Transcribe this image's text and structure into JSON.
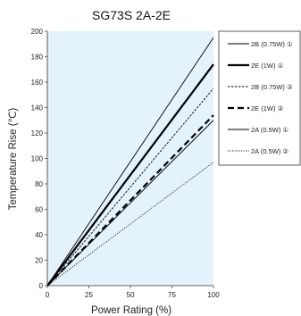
{
  "chart_data": {
    "type": "line",
    "title": "SG73S 2A-2E",
    "xlabel": "Power Rating (%)",
    "ylabel": "Temperature Rise (℃)",
    "xlim": [
      0,
      100
    ],
    "ylim": [
      0,
      200
    ],
    "xticks": [
      0,
      25,
      50,
      75,
      100
    ],
    "yticks": [
      0,
      20,
      40,
      60,
      80,
      100,
      120,
      140,
      160,
      180,
      200
    ],
    "grid": false,
    "plot_background": "#e3f2fb",
    "legend_position": "right",
    "series": [
      {
        "name": "2B (0.75W) ①",
        "x": [
          0,
          100
        ],
        "y": [
          0,
          195
        ],
        "color": "#000000",
        "style": "solid",
        "weight": "thin"
      },
      {
        "name": "2E (1W) ①",
        "x": [
          0,
          100
        ],
        "y": [
          0,
          174
        ],
        "color": "#000000",
        "style": "solid",
        "weight": "thick"
      },
      {
        "name": "2B (0.75W) ②",
        "x": [
          0,
          100
        ],
        "y": [
          0,
          155
        ],
        "color": "#000000",
        "style": "dashed-fine",
        "weight": "thin"
      },
      {
        "name": "2E (1W) ②",
        "x": [
          0,
          100
        ],
        "y": [
          0,
          134
        ],
        "color": "#000000",
        "style": "dashed-bold",
        "weight": "thick"
      },
      {
        "name": "2A (0.5W) ①",
        "x": [
          0,
          100
        ],
        "y": [
          0,
          130
        ],
        "color": "#000000",
        "style": "solid",
        "weight": "thin"
      },
      {
        "name": "2A (0.5W) ②",
        "x": [
          0,
          100
        ],
        "y": [
          0,
          97
        ],
        "color": "#000000",
        "style": "dotted",
        "weight": "thin"
      }
    ]
  }
}
